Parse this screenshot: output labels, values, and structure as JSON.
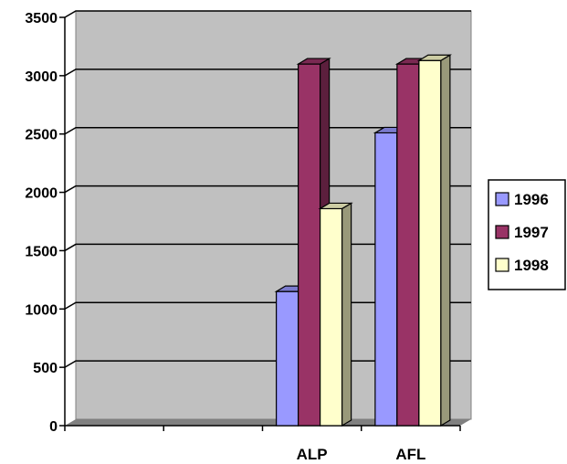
{
  "chart_data": {
    "type": "bar",
    "categories": [
      "",
      "",
      "ALP",
      "AFL"
    ],
    "series": [
      {
        "name": "1996",
        "values": [
          0,
          0,
          1150,
          2510
        ],
        "color": "#9999ff"
      },
      {
        "name": "1997",
        "values": [
          0,
          0,
          3100,
          3100
        ],
        "color": "#993366"
      },
      {
        "name": "1998",
        "values": [
          0,
          0,
          1860,
          3130
        ],
        "color": "#ffffcc"
      }
    ],
    "ylim": [
      0,
      3500
    ],
    "yticks": [
      "0",
      "500",
      "1000",
      "1500",
      "2000",
      "2500",
      "3000",
      "3500"
    ],
    "grid": true,
    "legend_position": "right",
    "three_d": true,
    "wall_color": "#c0c0c0",
    "floor_color": "#808080"
  }
}
